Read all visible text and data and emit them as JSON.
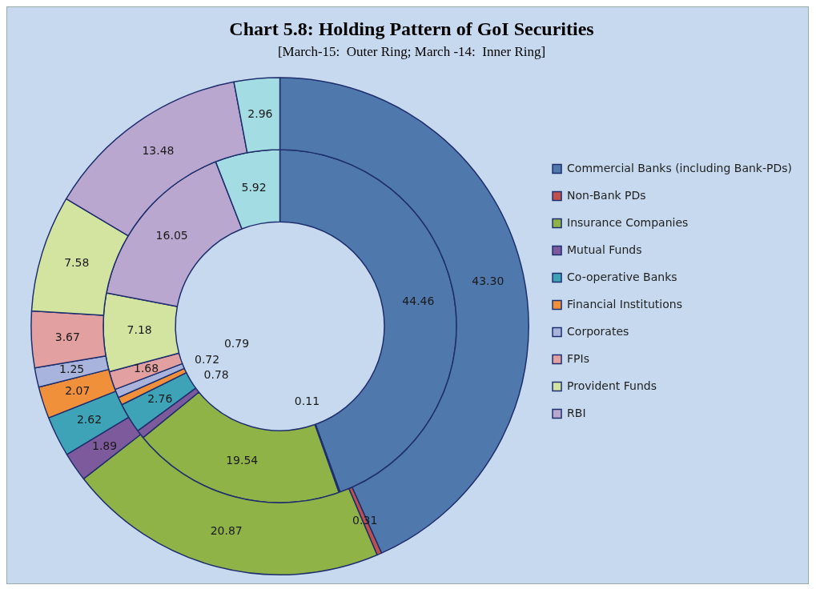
{
  "chart_data": {
    "type": "donut",
    "title": "Chart 5.8: Holding Pattern of GoI Securities",
    "subtitle": "[March-15:  Outer Ring; March -14:  Inner Ring]",
    "categories": [
      "Commercial Banks (including Bank-PDs)",
      "Non-Bank PDs",
      "Insurance Companies",
      "Mutual Funds",
      "Co-operative Banks",
      "Financial Institutions",
      "Corporates",
      "FPIs",
      "Provident Funds",
      "RBI",
      null
    ],
    "colors": [
      "#4f78ad",
      "#c0504d",
      "#8fb347",
      "#7d5a9c",
      "#3fa3b8",
      "#f0903a",
      "#a8b4dc",
      "#e2a0a0",
      "#d3e3a0",
      "#b9a7d0",
      "#a4dce4"
    ],
    "series": [
      {
        "values": [
          43.3,
          0.31,
          20.87,
          1.89,
          2.62,
          2.07,
          1.25,
          3.67,
          7.58,
          13.48,
          2.96
        ],
        "value_labels": [
          "43.30",
          "0.31",
          "20.87",
          "1.89",
          "2.62",
          "2.07",
          "1.25",
          "3.67",
          "7.58",
          "13.48",
          "2.96"
        ]
      },
      {
        "values": [
          44.46,
          0.11,
          19.54,
          0.78,
          2.76,
          0.72,
          0.79,
          1.68,
          7.18,
          16.05,
          5.92
        ],
        "value_labels": [
          "44.46",
          "0.11",
          "19.54",
          "0.78",
          "2.76",
          "0.72",
          "0.79",
          "1.68",
          "7.18",
          "16.05",
          "5.92"
        ]
      }
    ],
    "legend": "right"
  }
}
